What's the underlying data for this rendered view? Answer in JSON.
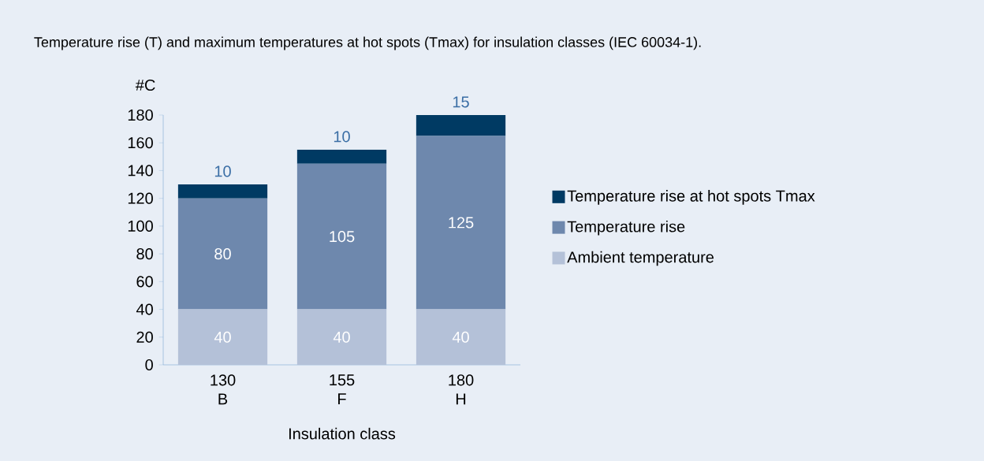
{
  "chart_data": {
    "type": "bar",
    "stacked": true,
    "title": "Temperature rise (T) and maximum temperatures at hot spots (Tmax) for insulation classes (IEC 60034-1).",
    "ylabel": "#C",
    "xlabel": "Insulation class",
    "categories": [
      "130 B",
      "155 F",
      "180 H"
    ],
    "series": [
      {
        "name": "Ambient temperature",
        "color": "#b4c1d8",
        "values": [
          40,
          40,
          40
        ]
      },
      {
        "name": "Temperature rise",
        "color": "#6e88ad",
        "values": [
          80,
          105,
          125
        ]
      },
      {
        "name": "Temperature rise at hot spots Tmax",
        "color": "#003a63",
        "values": [
          10,
          10,
          15
        ]
      }
    ],
    "ylim": [
      0,
      180
    ],
    "yticks": [
      0,
      20,
      40,
      60,
      80,
      100,
      120,
      140,
      160,
      180
    ],
    "data_labels": true,
    "legend": "right"
  }
}
